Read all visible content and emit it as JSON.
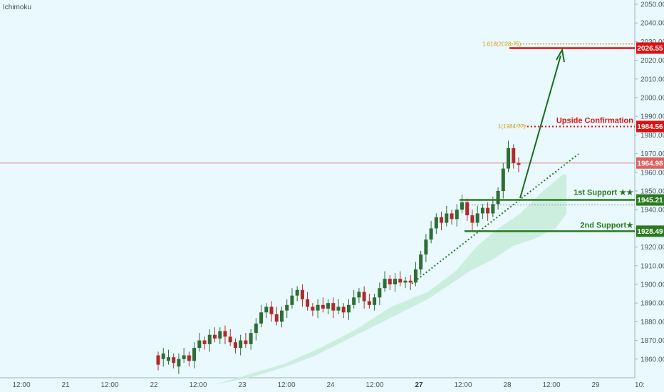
{
  "indicator_label": "Ichimoku",
  "colors": {
    "background": "#e9f9fd",
    "candle_up": "#2e6d35",
    "candle_down": "#b02a2a",
    "resistance": "#e01010",
    "support": "#2a7a1f",
    "fib": "#d4a017",
    "current_price_line": "#e88080",
    "cloud": "#c6ecd8",
    "arrow": "#1d6b1d",
    "trendline": "#2a7a1f"
  },
  "axes": {
    "y_ticks": [
      "2050.00",
      "2040.00",
      "2030.00",
      "2020.00",
      "2010.00",
      "2000.00",
      "1990.00",
      "1980.00",
      "1970.00",
      "1960.00",
      "1950.00",
      "1940.00",
      "1930.00",
      "1920.00",
      "1910.00",
      "1900.00",
      "1890.00",
      "1880.00",
      "1870.00",
      "1860.00"
    ],
    "x_ticks": [
      {
        "label": "12:00",
        "bold": false
      },
      {
        "label": "21",
        "bold": false
      },
      {
        "label": "12:00",
        "bold": false
      },
      {
        "label": "22",
        "bold": false
      },
      {
        "label": "12:00",
        "bold": false
      },
      {
        "label": "23",
        "bold": false
      },
      {
        "label": "12:00",
        "bold": false
      },
      {
        "label": "24",
        "bold": false
      },
      {
        "label": "12:00",
        "bold": false
      },
      {
        "label": "27",
        "bold": true
      },
      {
        "label": "12:00",
        "bold": false
      },
      {
        "label": "28",
        "bold": false
      },
      {
        "label": "12:00",
        "bold": false
      },
      {
        "label": "29",
        "bold": false
      },
      {
        "label": "10:",
        "bold": false
      }
    ]
  },
  "price_tags": [
    {
      "id": "target",
      "text": "2026.55",
      "price": 2026.55,
      "color": "#e01010"
    },
    {
      "id": "upside",
      "text": "1984.56",
      "price": 1984.56,
      "color": "#e01010"
    },
    {
      "id": "current",
      "text": "1964.98",
      "price": 1964.98,
      "color": "#e06060"
    },
    {
      "id": "support1",
      "text": "1945.21",
      "price": 1945.21,
      "color": "#2a7a1f"
    },
    {
      "id": "support2",
      "text": "1928.49",
      "price": 1928.49,
      "color": "#2a7a1f"
    }
  ],
  "annotations": {
    "fib_1618": "1.618(2028.75)",
    "fib_1": "1(1984.77)",
    "upside_confirmation": "Upside Confirmation",
    "first_support": "1st Support ★★",
    "second_support": "2nd Support★"
  },
  "chart_data": {
    "type": "candlestick",
    "title": "",
    "y_range": [
      1855,
      2052
    ],
    "levels": {
      "target": 2026.55,
      "fib_1618": 2028.75,
      "upside_confirmation": 1984.56,
      "fib_1": 1984.77,
      "current": 1964.98,
      "first_support": 1945.21,
      "second_support": 1928.49
    },
    "price_path": [
      [
        1862,
        1857
      ],
      [
        1860,
        1863
      ],
      [
        1859,
        1861
      ],
      [
        1861,
        1858
      ],
      [
        1856,
        1860
      ],
      [
        1860,
        1862
      ],
      [
        1862,
        1859
      ],
      [
        1859,
        1866
      ],
      [
        1866,
        1870
      ],
      [
        1870,
        1868
      ],
      [
        1868,
        1873
      ],
      [
        1873,
        1871
      ],
      [
        1871,
        1875
      ],
      [
        1875,
        1872
      ],
      [
        1872,
        1869
      ],
      [
        1869,
        1866
      ],
      [
        1866,
        1870
      ],
      [
        1870,
        1868
      ],
      [
        1868,
        1874
      ],
      [
        1874,
        1879
      ],
      [
        1879,
        1885
      ],
      [
        1885,
        1888
      ],
      [
        1888,
        1884
      ],
      [
        1884,
        1880
      ],
      [
        1880,
        1886
      ],
      [
        1886,
        1889
      ],
      [
        1889,
        1894
      ],
      [
        1894,
        1897
      ],
      [
        1897,
        1892
      ],
      [
        1892,
        1888
      ],
      [
        1888,
        1886
      ],
      [
        1886,
        1889
      ],
      [
        1889,
        1887
      ],
      [
        1887,
        1890
      ],
      [
        1890,
        1886
      ],
      [
        1886,
        1888
      ],
      [
        1888,
        1885
      ],
      [
        1885,
        1889
      ],
      [
        1889,
        1893
      ],
      [
        1893,
        1896
      ],
      [
        1896,
        1891
      ],
      [
        1891,
        1889
      ],
      [
        1889,
        1893
      ],
      [
        1893,
        1898
      ],
      [
        1898,
        1903
      ],
      [
        1903,
        1900
      ],
      [
        1900,
        1903
      ],
      [
        1903,
        1901
      ],
      [
        1901,
        1902
      ],
      [
        1902,
        1901
      ],
      [
        1901,
        1908
      ],
      [
        1908,
        1916
      ],
      [
        1916,
        1924
      ],
      [
        1924,
        1930
      ],
      [
        1930,
        1936
      ],
      [
        1936,
        1933
      ],
      [
        1933,
        1938
      ],
      [
        1938,
        1935
      ],
      [
        1935,
        1940
      ],
      [
        1940,
        1944
      ],
      [
        1944,
        1937
      ],
      [
        1937,
        1933
      ],
      [
        1933,
        1938
      ],
      [
        1938,
        1941
      ],
      [
        1941,
        1938
      ],
      [
        1938,
        1943
      ],
      [
        1943,
        1950
      ],
      [
        1950,
        1962
      ],
      [
        1962,
        1973
      ],
      [
        1973,
        1965
      ],
      [
        1965,
        1964
      ]
    ]
  }
}
